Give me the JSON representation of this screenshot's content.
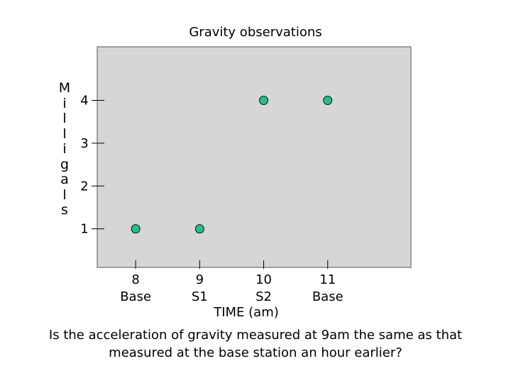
{
  "chart_data": {
    "type": "scatter",
    "title": "Gravity observations",
    "ylabel": "Milligals",
    "xlabel": "TIME (am)",
    "x_ticks": [
      {
        "value": 8,
        "label": "8",
        "sublabel": "Base"
      },
      {
        "value": 9,
        "label": "9",
        "sublabel": "S1"
      },
      {
        "value": 10,
        "label": "10",
        "sublabel": "S2"
      },
      {
        "value": 11,
        "label": "11",
        "sublabel": "Base"
      }
    ],
    "y_ticks": [
      1,
      2,
      3,
      4
    ],
    "points": [
      {
        "x": 8,
        "y": 1
      },
      {
        "x": 9,
        "y": 1
      },
      {
        "x": 10,
        "y": 4
      },
      {
        "x": 11,
        "y": 4
      }
    ],
    "xlim": [
      7.4,
      12.3
    ],
    "ylim": [
      0.1,
      5.25
    ],
    "grid": false,
    "colors": {
      "plot_background": "#d6d6d6",
      "marker_fill": "#1fbf93",
      "axis": "#000000"
    }
  },
  "question": "Is the acceleration of gravity measured at 9am the same as that measured at the base station an hour earlier?"
}
